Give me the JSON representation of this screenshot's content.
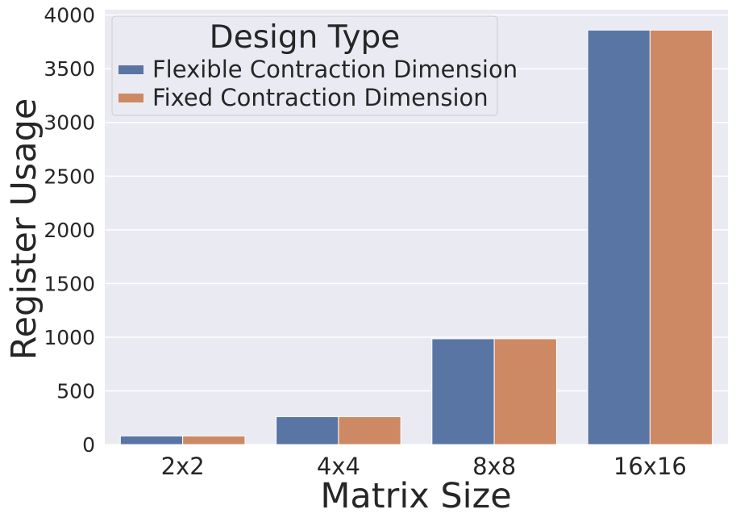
{
  "chart_data": {
    "type": "bar",
    "categories": [
      "2x2",
      "4x4",
      "8x8",
      "16x16"
    ],
    "series": [
      {
        "name": "Flexible Contraction Dimension",
        "values": [
          80,
          260,
          985,
          3860
        ]
      },
      {
        "name": "Fixed Contraction Dimension",
        "values": [
          80,
          260,
          985,
          3860
        ]
      }
    ],
    "xlabel": "Matrix Size",
    "ylabel": "Register Usage",
    "ylim": [
      0,
      4050
    ],
    "yticks": [
      0,
      500,
      1000,
      1500,
      2000,
      2500,
      3000,
      3500,
      4000
    ],
    "grid": true,
    "legend": {
      "title": "Design Type",
      "placement": "top-left"
    },
    "colors": {
      "background": "#eaeaf2",
      "grid": "#ffffff",
      "series": [
        "#5975a4",
        "#cc8963"
      ]
    }
  }
}
